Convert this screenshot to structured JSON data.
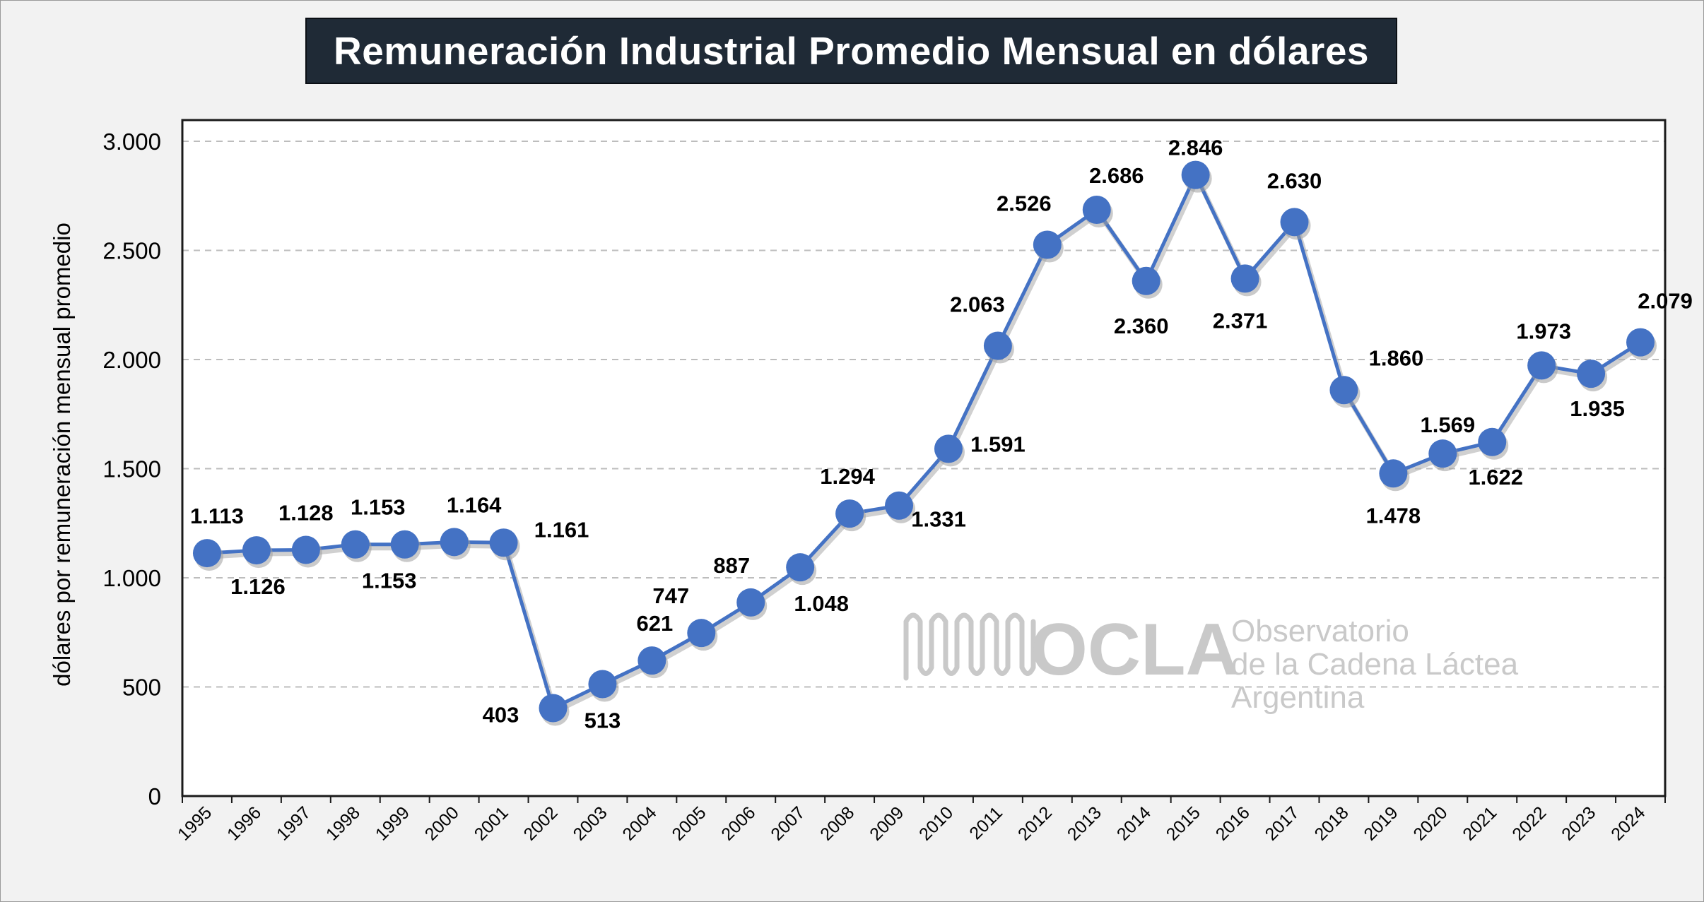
{
  "title": "Remuneración Industrial Promedio Mensual en dólares",
  "watermark": {
    "brand": "OCLA",
    "line1": "Observatorio",
    "line2": "de la Cadena Láctea",
    "line3": "Argentina"
  },
  "colors": {
    "line": "#4472c4",
    "title_bg": "#1f2a36",
    "plot_bg": "#ffffff",
    "page_bg": "#f2f2f2",
    "watermark": "#c9c9c9"
  },
  "chart_data": {
    "type": "line",
    "title": "Remuneración Industrial Promedio Mensual en dólares",
    "xlabel": "",
    "ylabel": "dólares  por  remuneración mensual promedio",
    "ylim": [
      0,
      3000
    ],
    "yticks": [
      0,
      500,
      1000,
      1500,
      2000,
      2500,
      3000
    ],
    "ytick_labels": [
      "0",
      "500",
      "1.000",
      "1.500",
      "2.000",
      "2.500",
      "3.000"
    ],
    "grid": "horizontal dashed",
    "categories": [
      "1995",
      "1996",
      "1997",
      "1998",
      "1999",
      "2000",
      "2001",
      "2002",
      "2003",
      "2004",
      "2005",
      "2006",
      "2007",
      "2008",
      "2009",
      "2010",
      "2011",
      "2012",
      "2013",
      "2014",
      "2015",
      "2016",
      "2017",
      "2018",
      "2019",
      "2020",
      "2021",
      "2022",
      "2023",
      "2024"
    ],
    "series": [
      {
        "values": [
          1113,
          1126,
          1128,
          1153,
          1153,
          1164,
          1161,
          403,
          513,
          621,
          747,
          887,
          1048,
          1294,
          1331,
          1591,
          2063,
          2526,
          2686,
          2360,
          2846,
          2371,
          2630,
          1860,
          1478,
          1569,
          1622,
          1973,
          1935,
          2079
        ],
        "labels": [
          "1.113",
          "1.126",
          "1.128",
          "1.153",
          "1.153",
          "1.164",
          "1.161",
          "403",
          "513",
          "621",
          "747",
          "887",
          "1.048",
          "1.294",
          "1.331",
          "1.591",
          "2.063",
          "2.526",
          "2.686",
          "2.360",
          "2.846",
          "2.371",
          "2.630",
          "1.860",
          "1.478",
          "1.569",
          "1.622",
          "1.973",
          "1.935",
          "2.079"
        ]
      }
    ]
  }
}
